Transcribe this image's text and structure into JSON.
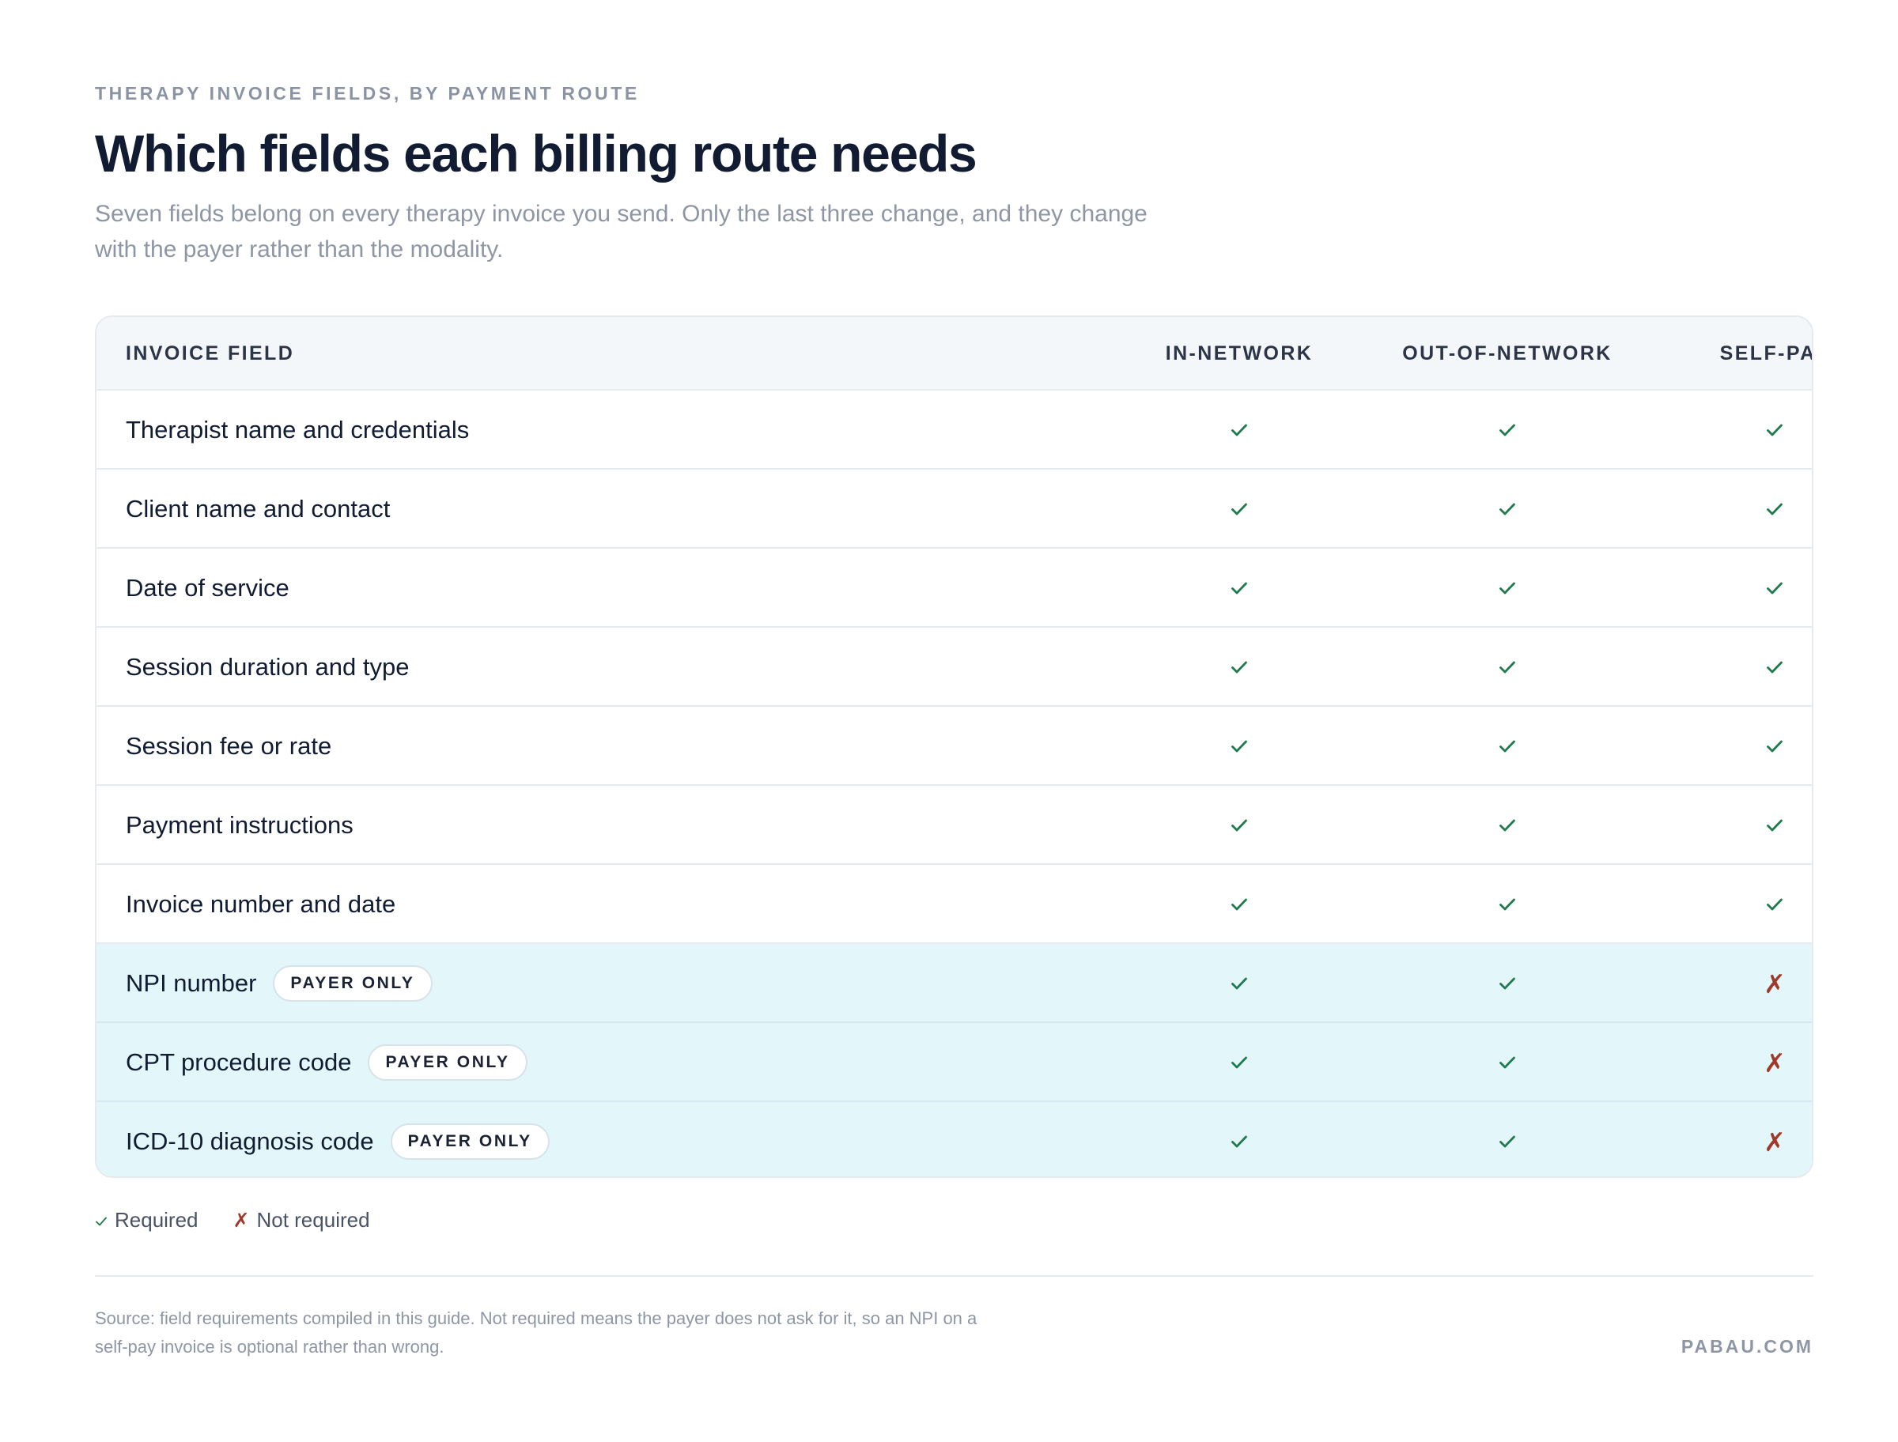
{
  "eyebrow": "THERAPY INVOICE FIELDS, BY PAYMENT ROUTE",
  "title": "Which fields each billing route needs",
  "subtitle": "Seven fields belong on every therapy invoice you send. Only the last three change, and they change with the payer rather than the modality.",
  "table": {
    "headers": {
      "field": "INVOICE FIELD",
      "in_network": "IN-NETWORK",
      "out_of_network": "OUT-OF-NETWORK",
      "self_pay": "SELF-PAY"
    },
    "badge_label": "PAYER ONLY",
    "rows": [
      {
        "field": "Therapist name and credentials",
        "payer_only": false,
        "in_network": "required",
        "out_of_network": "required",
        "self_pay": "required"
      },
      {
        "field": "Client name and contact",
        "payer_only": false,
        "in_network": "required",
        "out_of_network": "required",
        "self_pay": "required"
      },
      {
        "field": "Date of service",
        "payer_only": false,
        "in_network": "required",
        "out_of_network": "required",
        "self_pay": "required"
      },
      {
        "field": "Session duration and type",
        "payer_only": false,
        "in_network": "required",
        "out_of_network": "required",
        "self_pay": "required"
      },
      {
        "field": "Session fee or rate",
        "payer_only": false,
        "in_network": "required",
        "out_of_network": "required",
        "self_pay": "required"
      },
      {
        "field": "Payment instructions",
        "payer_only": false,
        "in_network": "required",
        "out_of_network": "required",
        "self_pay": "required"
      },
      {
        "field": "Invoice number and date",
        "payer_only": false,
        "in_network": "required",
        "out_of_network": "required",
        "self_pay": "required"
      },
      {
        "field": "NPI number",
        "payer_only": true,
        "in_network": "required",
        "out_of_network": "required",
        "self_pay": "not_required"
      },
      {
        "field": "CPT procedure code",
        "payer_only": true,
        "in_network": "required",
        "out_of_network": "required",
        "self_pay": "not_required"
      },
      {
        "field": "ICD-10 diagnosis code",
        "payer_only": true,
        "in_network": "required",
        "out_of_network": "required",
        "self_pay": "not_required"
      }
    ]
  },
  "legend": {
    "required_glyph": "✓",
    "required_label": "Required",
    "not_required_glyph": "✗",
    "not_required_label": "Not required"
  },
  "source": "Source: field requirements compiled in this guide. Not required means the payer does not ask for it, so an NPI on a self-pay invoice is optional rather than wrong.",
  "brand": "PABAU.COM",
  "colors": {
    "check": "#1f7a4d",
    "cross": "#a0392a",
    "payer_row_bg": "#e3f6fa",
    "header_bg": "#f4f7f9"
  },
  "icons": {
    "required": "check-icon",
    "not_required": "cross-icon"
  }
}
